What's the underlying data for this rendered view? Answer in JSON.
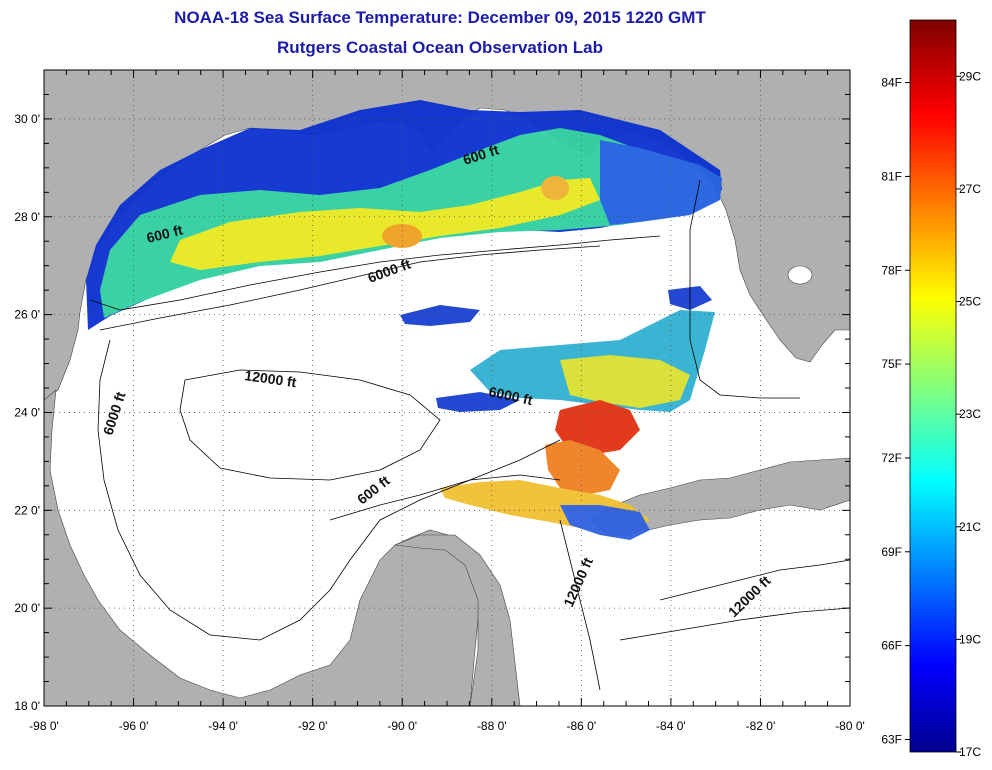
{
  "header": {
    "title": "NOAA-18 Sea Surface Temperature:  December 09, 2015 1220 GMT",
    "subtitle": "Rutgers Coastal Ocean Observation Lab"
  },
  "map": {
    "lon_range": [
      -98,
      -80
    ],
    "lat_range": [
      18,
      31
    ],
    "lon_ticks": [
      "-98 0'",
      "-96 0'",
      "-94 0'",
      "-92 0'",
      "-90 0'",
      "-88 0'",
      "-86 0'",
      "-84 0'",
      "-82 0'",
      "-80 0'"
    ],
    "lat_ticks": [
      "18 0'",
      "20 0'",
      "22 0'",
      "24 0'",
      "26 0'",
      "28 0'",
      "30 0'"
    ],
    "grid": "dotted",
    "land_color": "#b0b0b0",
    "contour_labels": [
      "600 ft",
      "600 ft",
      "6000 ft",
      "6000 ft",
      "12000 ft",
      "6000 ft",
      "600 ft",
      "12000 ft",
      "12000 ft"
    ]
  },
  "colorbar": {
    "fahrenheit_labels": [
      "63F",
      "66F",
      "69F",
      "72F",
      "75F",
      "78F",
      "81F",
      "84F"
    ],
    "celsius_labels": [
      "17C",
      "19C",
      "21C",
      "23C",
      "25C",
      "27C",
      "29C"
    ],
    "range_c": [
      17,
      30
    ],
    "colormap": "jet"
  },
  "colors": {
    "title": "#1c1ca8",
    "land": "#b0b0b0",
    "ocean": "#ffffff"
  }
}
